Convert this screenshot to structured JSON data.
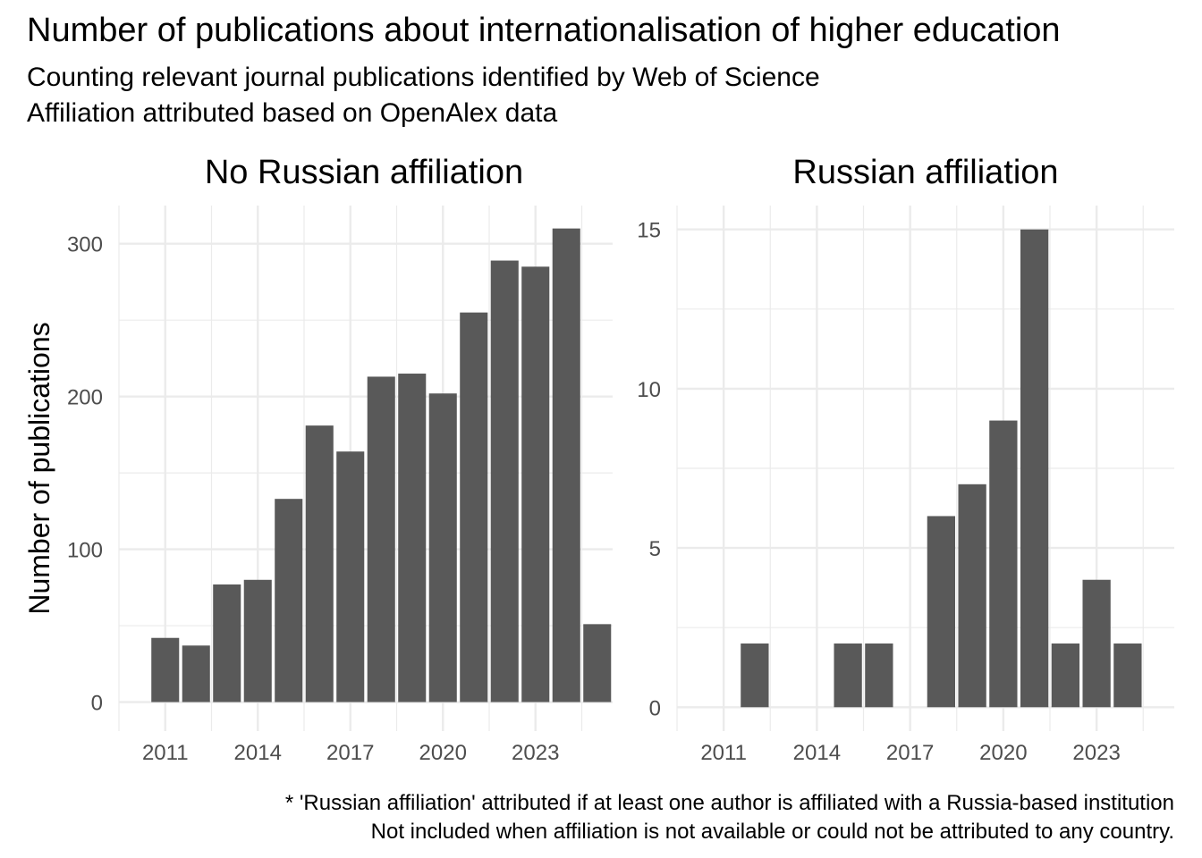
{
  "title": "Number of publications about internationalisation of higher education",
  "subtitle_lines": [
    "Counting relevant journal publications identified by Web of Science",
    "Affiliation attributed based on OpenAlex data"
  ],
  "caption_lines": [
    "* 'Russian affiliation' attributed if at least one author is affiliated with a Russia-based institution",
    "Not included when affiliation is not available or could not be attributed to any country."
  ],
  "colors": {
    "bar": "#595959",
    "grid": "#ebebeb",
    "text": "#000000",
    "axis_text": "#4d4d4d"
  },
  "chart_data": [
    {
      "type": "bar",
      "facet_title": "No Russian affiliation",
      "ylabel": "Number of publications",
      "xlabel": "",
      "x": [
        2011,
        2012,
        2013,
        2014,
        2015,
        2016,
        2017,
        2018,
        2019,
        2020,
        2021,
        2022,
        2023,
        2024,
        2025
      ],
      "values": [
        42,
        37,
        77,
        80,
        133,
        181,
        164,
        213,
        215,
        202,
        255,
        289,
        285,
        310,
        51
      ],
      "xlim": [
        2009.5,
        2025.5
      ],
      "ylim": [
        -19,
        325
      ],
      "xticks": [
        2011,
        2014,
        2017,
        2020,
        2023
      ],
      "yticks": [
        0,
        100,
        200,
        300
      ],
      "grid": true
    },
    {
      "type": "bar",
      "facet_title": "Russian affiliation",
      "ylabel": "",
      "xlabel": "",
      "x": [
        2012,
        2015,
        2016,
        2018,
        2019,
        2020,
        2021,
        2022,
        2023,
        2024
      ],
      "values": [
        2,
        2,
        2,
        6,
        7,
        9,
        15,
        2,
        4,
        2
      ],
      "xlim": [
        2009.5,
        2025.5
      ],
      "ylim": [
        -0.75,
        15.75
      ],
      "xticks": [
        2011,
        2014,
        2017,
        2020,
        2023
      ],
      "yticks": [
        0,
        5,
        10,
        15
      ],
      "grid": true
    }
  ]
}
